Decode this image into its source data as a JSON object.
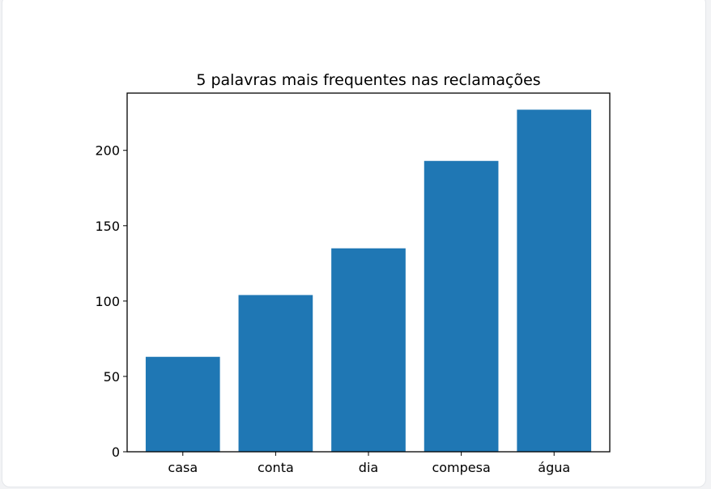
{
  "chart_data": {
    "type": "bar",
    "title": "5 palavras mais frequentes nas reclamações",
    "xlabel": "",
    "ylabel": "",
    "categories": [
      "casa",
      "conta",
      "dia",
      "compesa",
      "água"
    ],
    "values": [
      63,
      104,
      135,
      193,
      227
    ],
    "ylim": [
      0,
      238
    ],
    "yticks": [
      0,
      50,
      100,
      150,
      200
    ],
    "grid": false,
    "legend": "none",
    "bar_color": "#1f77b4"
  }
}
